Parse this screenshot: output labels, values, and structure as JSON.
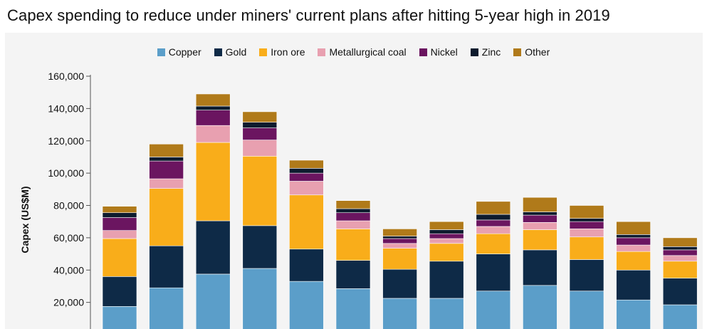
{
  "title": "Capex spending to reduce under miners' current plans after hitting 5-year high in 2019",
  "chart_data": {
    "type": "bar",
    "stacked": true,
    "title": "Capex spending to reduce under miners' current plans after hitting 5-year high in 2019",
    "xlabel": "",
    "ylabel": "Capex (US$M)",
    "ylim": [
      0,
      160000
    ],
    "yticks": [
      "20,000",
      "40,000",
      "60,000",
      "80,000",
      "100,000",
      "120,000",
      "140,000",
      "160,000"
    ],
    "ytick_values": [
      20000,
      40000,
      60000,
      80000,
      100000,
      120000,
      140000,
      160000
    ],
    "grid": false,
    "legend_placement": "top-center",
    "categories": [
      "",
      "",
      "",
      "",
      "",
      "",
      "",
      "",
      "",
      "",
      "",
      "",
      ""
    ],
    "series": [
      {
        "name": "Copper",
        "color": "#5b9ec9",
        "values": [
          17500,
          29000,
          37500,
          41000,
          33000,
          28500,
          22500,
          22500,
          27000,
          30500,
          27000,
          21500,
          18500
        ]
      },
      {
        "name": "Gold",
        "color": "#0e2a47",
        "values": [
          18500,
          26000,
          33000,
          26500,
          20000,
          17500,
          18000,
          23000,
          23000,
          22000,
          19500,
          18500,
          16500
        ]
      },
      {
        "name": "Iron ore",
        "color": "#f9ad1a",
        "values": [
          23500,
          35500,
          48500,
          43000,
          33500,
          19500,
          13000,
          11000,
          12500,
          12500,
          14000,
          11500,
          10500
        ]
      },
      {
        "name": "Metallurgical coal",
        "color": "#e8a0b0",
        "values": [
          5000,
          6000,
          10500,
          10000,
          8500,
          5000,
          3000,
          3000,
          4500,
          4500,
          5000,
          4000,
          3500
        ]
      },
      {
        "name": "Nickel",
        "color": "#6b1560",
        "values": [
          8000,
          11000,
          9500,
          7500,
          5000,
          5000,
          3000,
          3000,
          4000,
          4500,
          4500,
          4500,
          3500
        ]
      },
      {
        "name": "Zinc",
        "color": "#0d1b2e",
        "values": [
          3000,
          2500,
          2500,
          3500,
          3000,
          2500,
          1500,
          2500,
          3500,
          2000,
          2000,
          2000,
          2000
        ]
      },
      {
        "name": "Other",
        "color": "#b07a1a",
        "values": [
          4000,
          8000,
          7500,
          6500,
          5000,
          5000,
          4500,
          5000,
          8000,
          9000,
          8000,
          8000,
          5500
        ]
      }
    ]
  }
}
